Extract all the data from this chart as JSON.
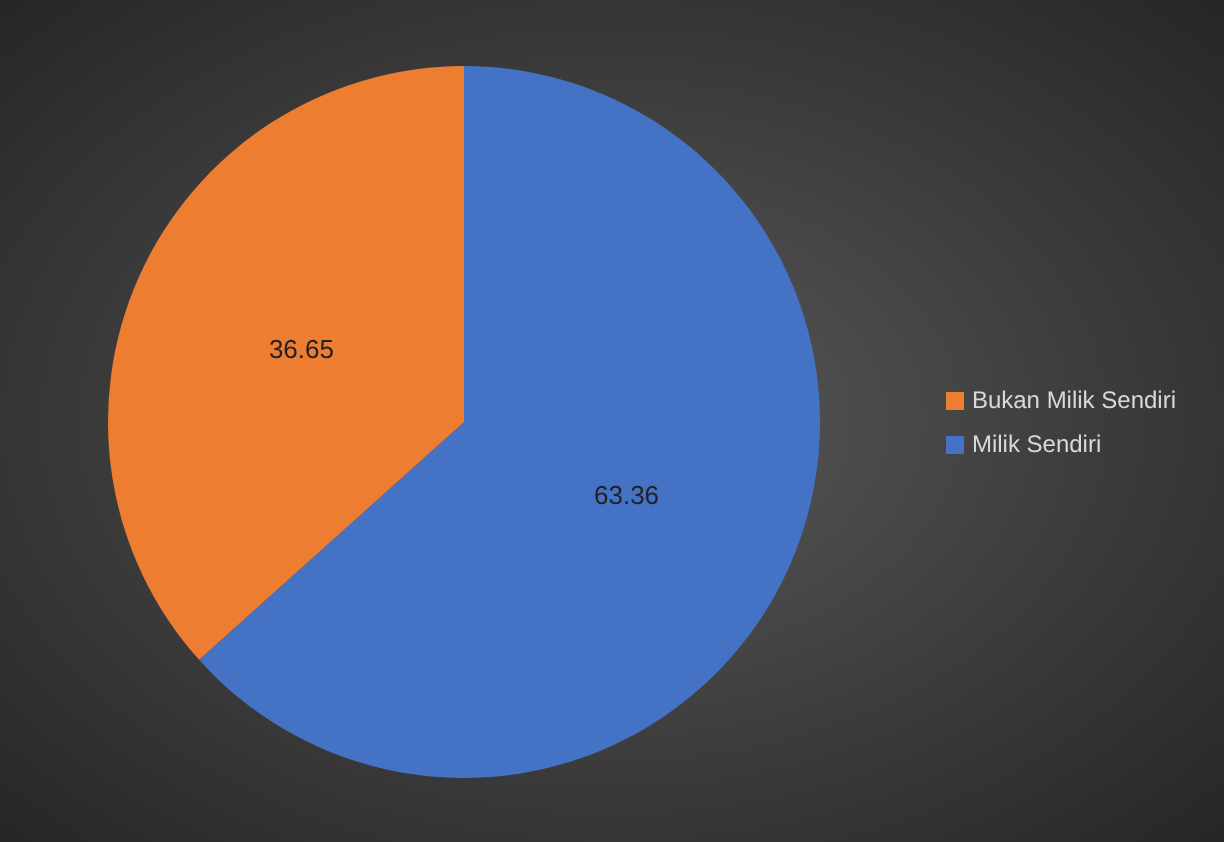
{
  "chart_data": {
    "type": "pie",
    "categories": [
      "Milik Sendiri",
      "Bukan Milik Sendiri"
    ],
    "values": [
      63.36,
      36.65
    ],
    "colors": [
      "#4472c4",
      "#ed7d31"
    ],
    "data_labels": true,
    "legend": "right"
  }
}
